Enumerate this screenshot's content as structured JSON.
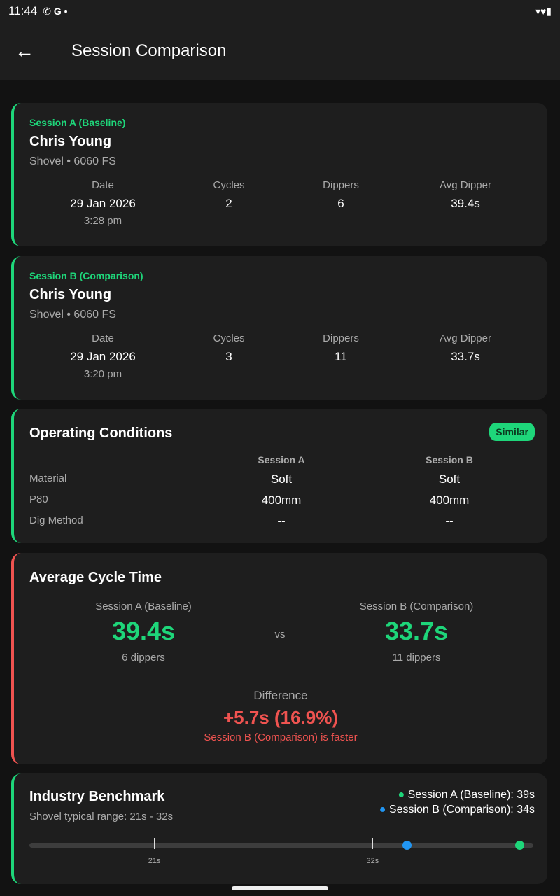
{
  "status": {
    "time": "11:44"
  },
  "header": {
    "title": "Session Comparison"
  },
  "sessions": [
    {
      "label": "Session A (Baseline)",
      "name": "Chris Young",
      "equipment": "Shovel • 6060 FS",
      "date_label": "Date",
      "date": "29 Jan 2026",
      "time": "3:28 pm",
      "cycles_label": "Cycles",
      "cycles": "2",
      "dippers_label": "Dippers",
      "dippers": "6",
      "avg_label": "Avg Dipper",
      "avg": "39.4s"
    },
    {
      "label": "Session B (Comparison)",
      "name": "Chris Young",
      "equipment": "Shovel • 6060 FS",
      "date_label": "Date",
      "date": "29 Jan 2026",
      "time": "3:20 pm",
      "cycles_label": "Cycles",
      "cycles": "3",
      "dippers_label": "Dippers",
      "dippers": "11",
      "avg_label": "Avg Dipper",
      "avg": "33.7s"
    }
  ],
  "conditions": {
    "title": "Operating Conditions",
    "badge": "Similar",
    "col_a": "Session A",
    "col_b": "Session B",
    "rows": [
      {
        "k": "Material",
        "a": "Soft",
        "b": "Soft"
      },
      {
        "k": "P80",
        "a": "400mm",
        "b": "400mm"
      },
      {
        "k": "Dig Method",
        "a": "--",
        "b": "--"
      }
    ]
  },
  "cycle": {
    "title": "Average Cycle Time",
    "a_label": "Session A (Baseline)",
    "a_value": "39.4s",
    "a_sub": "6 dippers",
    "vs": "vs",
    "b_label": "Session B (Comparison)",
    "b_value": "33.7s",
    "b_sub": "11 dippers",
    "diff_label": "Difference",
    "diff": "+5.7s (16.9%)",
    "verdict": "Session B (Comparison) is faster"
  },
  "benchmark": {
    "title": "Industry Benchmark",
    "range": "Shovel typical range: 21s - 32s",
    "legend_a": "Session A (Baseline): 39s",
    "legend_b": "Session B (Comparison): 34s",
    "tick_min": "21s",
    "tick_max": "32s",
    "min": 21,
    "max": 32,
    "a": 39.4,
    "b": 33.7,
    "color_a": "#1ed67a",
    "color_b": "#2196f3"
  }
}
